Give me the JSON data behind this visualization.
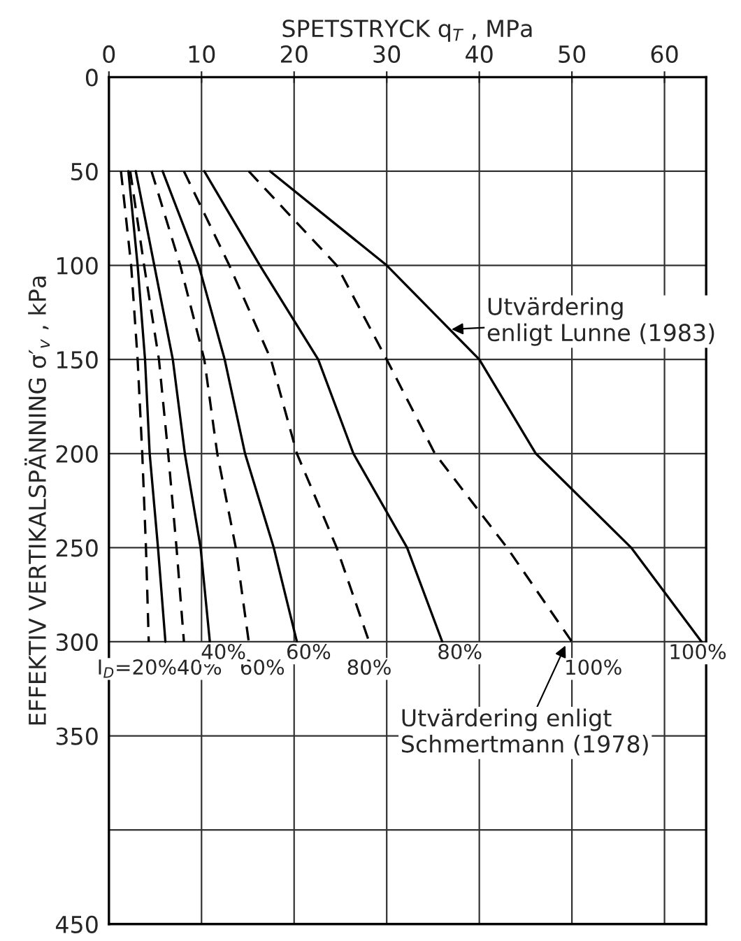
{
  "chart_data": {
    "type": "line",
    "xlabel": "SPETSTRYCK q$_{T}$ , MPa",
    "ylabel": "EFFEKTIV VERTIKALSPÄNNING σ′$_{v}$ , kPa",
    "xlim": [
      0,
      64.5
    ],
    "xticks": [
      0,
      10,
      20,
      30,
      40,
      50,
      60
    ],
    "ylim": [
      450,
      0
    ],
    "yticks": [
      0,
      50,
      100,
      150,
      200,
      250,
      300,
      350,
      {
        "value": 400,
        "label": null
      },
      450
    ],
    "grid": true,
    "legend": false,
    "marker": "none",
    "series": [
      {
        "color": "#000000",
        "line_style": "dashed",
        "x": [
          1.3,
          2.4,
          3.1,
          3.6,
          4.0,
          4.3
        ],
        "values": [
          50,
          100,
          150,
          200,
          250,
          300
        ]
      },
      {
        "color": "#000000",
        "line_style": "solid",
        "x": [
          2.1,
          3.1,
          3.9,
          4.4,
          5.3,
          6.1
        ],
        "values": [
          50,
          100,
          150,
          200,
          250,
          300
        ]
      },
      {
        "color": "#000000",
        "line_style": "dashed",
        "x": [
          2.3,
          3.8,
          5.4,
          6.4,
          7.3,
          8.1
        ],
        "values": [
          50,
          100,
          150,
          200,
          250,
          300
        ]
      },
      {
        "color": "#000000",
        "line_style": "solid",
        "x": [
          2.9,
          4.9,
          6.9,
          8.2,
          9.9,
          10.9
        ],
        "values": [
          50,
          100,
          150,
          200,
          250,
          300
        ]
      },
      {
        "color": "#000000",
        "line_style": "dashed",
        "x": [
          4.6,
          7.7,
          10.3,
          11.7,
          13.7,
          15.1
        ],
        "values": [
          50,
          100,
          150,
          200,
          250,
          300
        ]
      },
      {
        "color": "#000000",
        "line_style": "solid",
        "x": [
          5.8,
          9.7,
          12.5,
          14.7,
          17.8,
          20.3
        ],
        "values": [
          50,
          100,
          150,
          200,
          250,
          300
        ]
      },
      {
        "color": "#000000",
        "line_style": "dashed",
        "x": [
          8.1,
          13.0,
          17.5,
          20.3,
          24.6,
          28.1
        ],
        "values": [
          50,
          100,
          150,
          200,
          250,
          300
        ]
      },
      {
        "color": "#000000",
        "line_style": "solid",
        "x": [
          10.3,
          16.3,
          22.6,
          26.4,
          32.2,
          36.0
        ],
        "values": [
          50,
          100,
          150,
          200,
          250,
          300
        ]
      },
      {
        "color": "#000000",
        "line_style": "dashed",
        "x": [
          15.1,
          24.6,
          30.0,
          35.2,
          43.0,
          50.0
        ],
        "values": [
          50,
          100,
          150,
          200,
          250,
          300
        ]
      },
      {
        "color": "#000000",
        "line_style": "solid",
        "x": [
          17.4,
          30.0,
          40.0,
          46.1,
          56.4,
          64.0
        ],
        "values": [
          50,
          100,
          150,
          200,
          250,
          300
        ]
      }
    ],
    "annotations": [
      {
        "text": "I$_{D}$=20%",
        "x": 4.3,
        "y": 300
      },
      {
        "text": "40%",
        "x": 8.1,
        "y": 300
      },
      {
        "text": "60%",
        "x": 15.1,
        "y": 300
      },
      {
        "text": "80%",
        "x": 28.1,
        "y": 300
      },
      {
        "text": "100%",
        "x": 50.0,
        "y": 300
      },
      {
        "text": "40%",
        "x": 10.9,
        "y": 300
      },
      {
        "text": "60%",
        "x": 20.3,
        "y": 300
      },
      {
        "text": "80%",
        "x": 36.0,
        "y": 300
      },
      {
        "text": "100%",
        "x": 64.0,
        "y": 300
      },
      {
        "text": "Utvärdering\nenligt Lunne (1983)",
        "x": 37.0,
        "y": 134
      },
      {
        "text": "Utvärdering enligt\nSchmertmann (1978)",
        "x": 49.3,
        "y": 302
      }
    ]
  }
}
